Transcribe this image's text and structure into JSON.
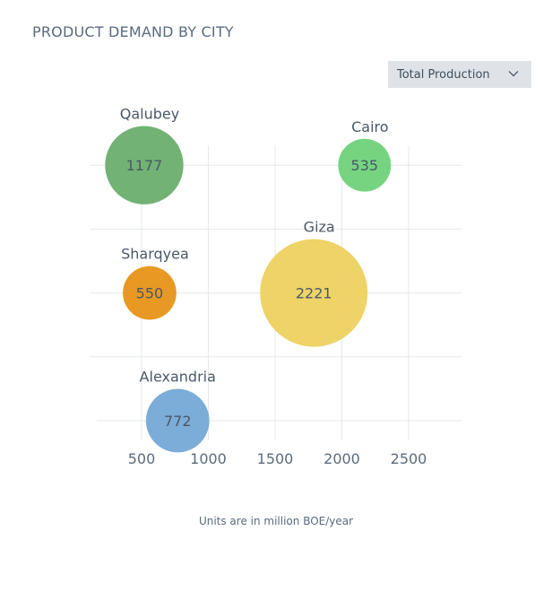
{
  "title": "PRODUCT DEMAND BY CITY",
  "dropdown": {
    "selected": "Total Production"
  },
  "footnote": "Units are in million BOE/year",
  "colors": {
    "grid": "#e6e8eb",
    "axis_text": "#5b6b7d",
    "label_text": "#4a5868",
    "value_text": "#4a5868"
  },
  "chart_data": {
    "type": "scatter",
    "title": "",
    "xlabel": "",
    "ylabel": "",
    "xlim": [
      120,
      2900
    ],
    "xticks": [
      500,
      1000,
      1500,
      2000,
      2500
    ],
    "ylim": [
      0,
      5
    ],
    "grid": true,
    "points": [
      {
        "name": "Qalubey",
        "x": 520,
        "y": 4,
        "value": 1177,
        "color": "#6aae6e"
      },
      {
        "name": "Cairo",
        "x": 2170,
        "y": 4,
        "value": 535,
        "color": "#6fd27a"
      },
      {
        "name": "Sharqyea",
        "x": 560,
        "y": 2,
        "value": 550,
        "color": "#e69417"
      },
      {
        "name": "Giza",
        "x": 1790,
        "y": 2,
        "value": 2221,
        "color": "#edd15f"
      },
      {
        "name": "Alexandria",
        "x": 770,
        "y": 0,
        "value": 772,
        "color": "#75a8d6"
      }
    ]
  }
}
